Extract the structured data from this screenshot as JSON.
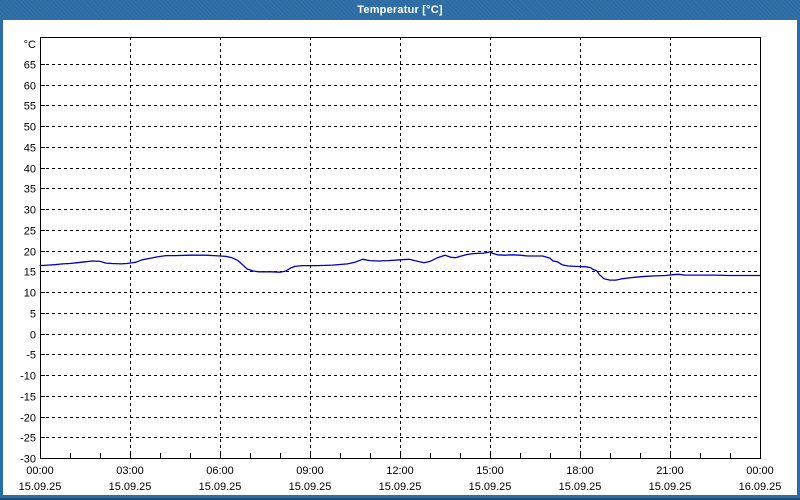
{
  "window": {
    "title": "Temperatur [°C]",
    "colors": {
      "titlebar": "#2B6CA4",
      "titlebar_text": "#FFFFFF",
      "border": "#2B6CA4",
      "border_outer": "#1B4A72",
      "plot_background": "#FFFFFF",
      "frame": "#000000",
      "grid": "#000000",
      "line": "#0000BE"
    }
  },
  "chart_data": {
    "type": "line",
    "title": "Temperatur [°C]",
    "ylabel": "°C",
    "xlabel": "",
    "legend": "none",
    "grid": {
      "style": "dashed",
      "color": "#000000",
      "h_step_deg": 5,
      "v_step_hours": 3,
      "minor_tick_hours": 1
    },
    "y_axis": {
      "unit": "°C",
      "min": -30,
      "max": 71,
      "tick_step": 5,
      "tick_labels": [
        65,
        60,
        55,
        50,
        45,
        40,
        35,
        30,
        25,
        20,
        15,
        10,
        5,
        0,
        -5,
        -10,
        -15,
        -20,
        -25,
        -30
      ]
    },
    "x_axis": {
      "start_hour": 0,
      "end_hour": 24,
      "major_ticks": [
        {
          "hour": 0,
          "time": "00:00",
          "date": "15.09.25"
        },
        {
          "hour": 3,
          "time": "03:00",
          "date": "15.09.25"
        },
        {
          "hour": 6,
          "time": "06:00",
          "date": "15.09.25"
        },
        {
          "hour": 9,
          "time": "09:00",
          "date": "15.09.25"
        },
        {
          "hour": 12,
          "time": "12:00",
          "date": "15.09.25"
        },
        {
          "hour": 15,
          "time": "15:00",
          "date": "15.09.25"
        },
        {
          "hour": 18,
          "time": "18:00",
          "date": "15.09.25"
        },
        {
          "hour": 21,
          "time": "21:00",
          "date": "15.09.25"
        },
        {
          "hour": 24,
          "time": "00:00",
          "date": "16.09.25"
        }
      ]
    },
    "series": [
      {
        "name": "Temperatur",
        "color": "#0000BE",
        "points": [
          [
            0,
            16.4
          ],
          [
            0.25,
            16.5
          ],
          [
            0.5,
            16.6
          ],
          [
            0.75,
            16.8
          ],
          [
            1,
            16.9
          ],
          [
            1.25,
            17.1
          ],
          [
            1.5,
            17.3
          ],
          [
            1.75,
            17.5
          ],
          [
            2,
            17.4
          ],
          [
            2.2,
            17.0
          ],
          [
            2.4,
            16.9
          ],
          [
            2.7,
            16.8
          ],
          [
            2.9,
            16.9
          ],
          [
            3.2,
            17.2
          ],
          [
            3.4,
            17.8
          ],
          [
            3.7,
            18.2
          ],
          [
            3.9,
            18.5
          ],
          [
            4.2,
            18.8
          ],
          [
            4.5,
            18.8
          ],
          [
            5,
            18.9
          ],
          [
            5.5,
            18.9
          ],
          [
            5.8,
            18.8
          ],
          [
            6.2,
            18.6
          ],
          [
            6.4,
            18.3
          ],
          [
            6.6,
            17.6
          ],
          [
            6.75,
            16.6
          ],
          [
            6.9,
            15.6
          ],
          [
            7.1,
            15.1
          ],
          [
            7.3,
            14.9
          ],
          [
            7.7,
            14.9
          ],
          [
            8,
            14.8
          ],
          [
            8.2,
            15.1
          ],
          [
            8.35,
            15.8
          ],
          [
            8.5,
            16.2
          ],
          [
            8.75,
            16.4
          ],
          [
            9.25,
            16.4
          ],
          [
            9.75,
            16.5
          ],
          [
            10.25,
            16.8
          ],
          [
            10.5,
            17.2
          ],
          [
            10.75,
            17.9
          ],
          [
            11,
            17.6
          ],
          [
            11.3,
            17.5
          ],
          [
            11.6,
            17.6
          ],
          [
            12,
            17.8
          ],
          [
            12.3,
            17.9
          ],
          [
            12.6,
            17.4
          ],
          [
            12.8,
            17.1
          ],
          [
            13,
            17.4
          ],
          [
            13.25,
            18.3
          ],
          [
            13.5,
            18.9
          ],
          [
            13.7,
            18.4
          ],
          [
            13.85,
            18.3
          ],
          [
            14,
            18.6
          ],
          [
            14.25,
            19.1
          ],
          [
            14.5,
            19.3
          ],
          [
            14.8,
            19.4
          ],
          [
            15,
            19.7
          ],
          [
            15.1,
            19.3
          ],
          [
            15.25,
            19.0
          ],
          [
            15.5,
            18.9
          ],
          [
            15.75,
            19.0
          ],
          [
            16,
            18.9
          ],
          [
            16.25,
            18.7
          ],
          [
            16.75,
            18.7
          ],
          [
            17,
            18.2
          ],
          [
            17.1,
            17.5
          ],
          [
            17.25,
            17.3
          ],
          [
            17.4,
            16.6
          ],
          [
            17.6,
            16.3
          ],
          [
            17.85,
            16.2
          ],
          [
            18.2,
            16.1
          ],
          [
            18.35,
            15.9
          ],
          [
            18.45,
            15.4
          ],
          [
            18.55,
            15.2
          ],
          [
            18.65,
            14.2
          ],
          [
            18.8,
            13.2
          ],
          [
            19,
            12.9
          ],
          [
            19.2,
            12.9
          ],
          [
            19.4,
            13.2
          ],
          [
            19.6,
            13.4
          ],
          [
            19.85,
            13.6
          ],
          [
            20.2,
            13.8
          ],
          [
            20.5,
            13.9
          ],
          [
            20.85,
            14.0
          ],
          [
            21.1,
            14.2
          ],
          [
            21.3,
            14.3
          ],
          [
            21.5,
            14.1
          ],
          [
            22,
            14.1
          ],
          [
            22.5,
            14.1
          ],
          [
            23,
            14.0
          ],
          [
            23.5,
            14.0
          ],
          [
            24,
            14.0
          ]
        ]
      }
    ]
  }
}
